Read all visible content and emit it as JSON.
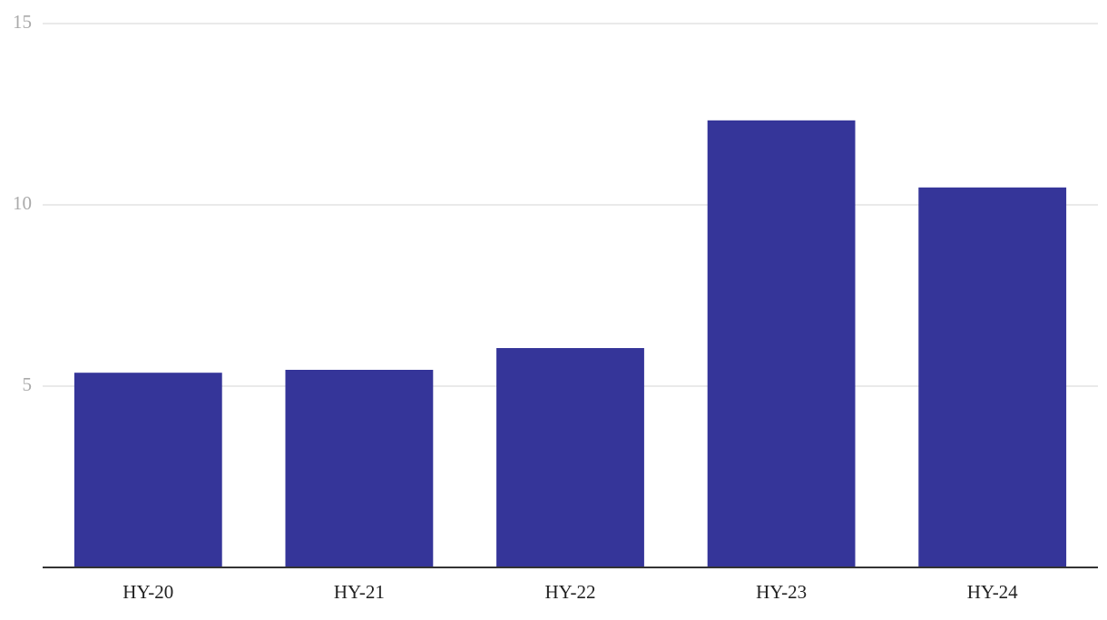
{
  "chart_data": {
    "type": "bar",
    "categories": [
      "HY-20",
      "HY-21",
      "HY-22",
      "HY-23",
      "HY-24"
    ],
    "values": [
      5.37,
      5.45,
      6.05,
      12.33,
      10.48
    ],
    "color": "#353599",
    "ylim": [
      0,
      15
    ],
    "yticks": [
      5,
      10,
      15
    ],
    "grid": true
  }
}
